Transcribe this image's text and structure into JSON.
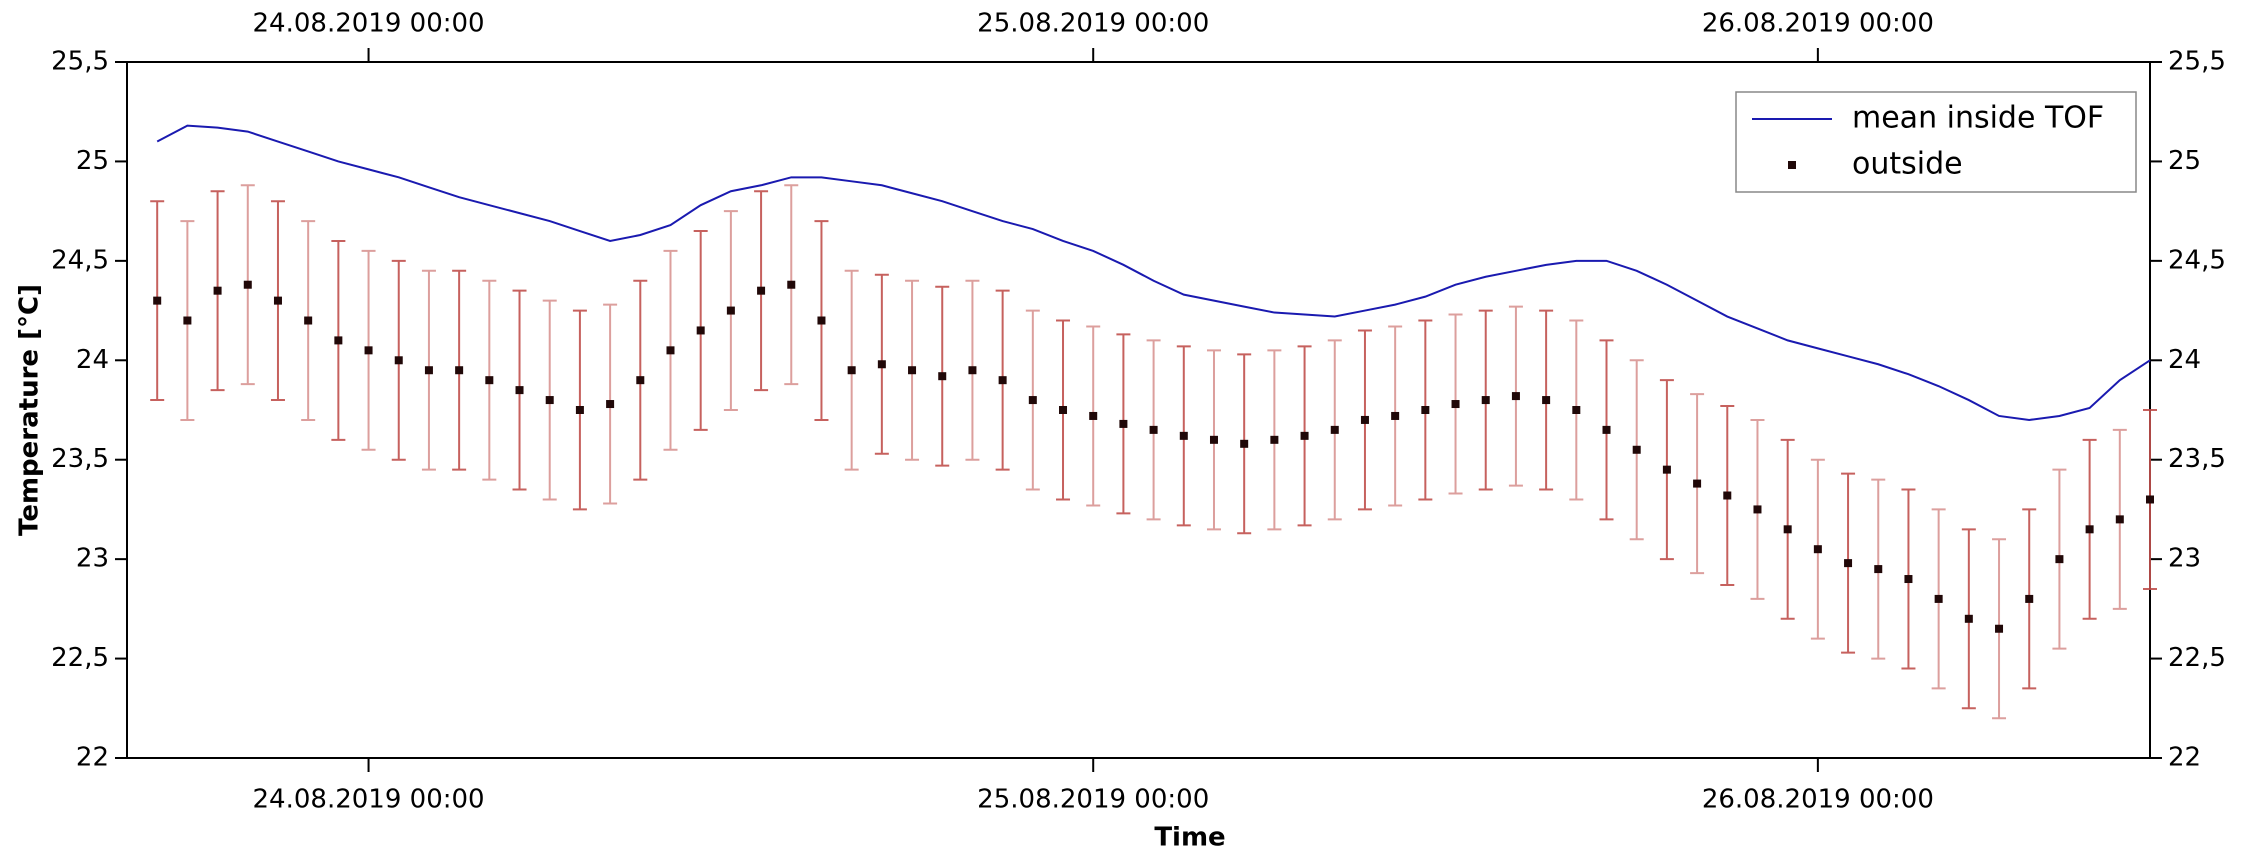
{
  "chart_data": {
    "type": "line",
    "x_label": "Time",
    "y_label": "Temperature [°C]",
    "x": [
      "2019-08-23 17:00",
      "2019-08-23 18:00",
      "2019-08-23 19:00",
      "2019-08-23 20:00",
      "2019-08-23 21:00",
      "2019-08-23 22:00",
      "2019-08-23 23:00",
      "2019-08-24 00:00",
      "2019-08-24 01:00",
      "2019-08-24 02:00",
      "2019-08-24 03:00",
      "2019-08-24 04:00",
      "2019-08-24 05:00",
      "2019-08-24 06:00",
      "2019-08-24 07:00",
      "2019-08-24 08:00",
      "2019-08-24 09:00",
      "2019-08-24 10:00",
      "2019-08-24 11:00",
      "2019-08-24 12:00",
      "2019-08-24 13:00",
      "2019-08-24 14:00",
      "2019-08-24 15:00",
      "2019-08-24 16:00",
      "2019-08-24 17:00",
      "2019-08-24 18:00",
      "2019-08-24 19:00",
      "2019-08-24 20:00",
      "2019-08-24 21:00",
      "2019-08-24 22:00",
      "2019-08-24 23:00",
      "2019-08-25 00:00",
      "2019-08-25 01:00",
      "2019-08-25 02:00",
      "2019-08-25 03:00",
      "2019-08-25 04:00",
      "2019-08-25 05:00",
      "2019-08-25 06:00",
      "2019-08-25 07:00",
      "2019-08-25 08:00",
      "2019-08-25 09:00",
      "2019-08-25 10:00",
      "2019-08-25 11:00",
      "2019-08-25 12:00",
      "2019-08-25 13:00",
      "2019-08-25 14:00",
      "2019-08-25 15:00",
      "2019-08-25 16:00",
      "2019-08-25 17:00",
      "2019-08-25 18:00",
      "2019-08-25 19:00",
      "2019-08-25 20:00",
      "2019-08-25 21:00",
      "2019-08-25 22:00",
      "2019-08-25 23:00",
      "2019-08-26 00:00",
      "2019-08-26 01:00",
      "2019-08-26 02:00",
      "2019-08-26 03:00",
      "2019-08-26 04:00",
      "2019-08-26 05:00",
      "2019-08-26 06:00",
      "2019-08-26 07:00",
      "2019-08-26 08:00",
      "2019-08-26 09:00",
      "2019-08-26 10:00",
      "2019-08-26 11:00"
    ],
    "series": [
      {
        "name": "mean inside TOF",
        "color": "#1a1ab0",
        "values": [
          25.1,
          25.18,
          25.17,
          25.15,
          25.1,
          25.05,
          25.0,
          24.96,
          24.92,
          24.87,
          24.82,
          24.78,
          24.74,
          24.7,
          24.65,
          24.6,
          24.63,
          24.68,
          24.78,
          24.85,
          24.88,
          24.92,
          24.92,
          24.9,
          24.88,
          24.84,
          24.8,
          24.75,
          24.7,
          24.66,
          24.6,
          24.55,
          24.48,
          24.4,
          24.33,
          24.3,
          24.27,
          24.24,
          24.23,
          24.22,
          24.25,
          24.28,
          24.32,
          24.38,
          24.42,
          24.45,
          24.48,
          24.5,
          24.5,
          24.45,
          24.38,
          24.3,
          24.22,
          24.16,
          24.1,
          24.06,
          24.02,
          23.98,
          23.93,
          23.87,
          23.8,
          23.72,
          23.7,
          23.72,
          23.76,
          23.9,
          24.0
        ]
      },
      {
        "name": "outside",
        "color": "#200808",
        "error_color": "#c0504d",
        "marker": "square",
        "values": [
          24.3,
          24.2,
          24.35,
          24.38,
          24.3,
          24.2,
          24.1,
          24.05,
          24.0,
          23.95,
          23.95,
          23.9,
          23.85,
          23.8,
          23.75,
          23.78,
          23.9,
          24.05,
          24.15,
          24.25,
          24.35,
          24.38,
          24.2,
          23.95,
          23.98,
          23.95,
          23.92,
          23.95,
          23.9,
          23.8,
          23.75,
          23.72,
          23.68,
          23.65,
          23.62,
          23.6,
          23.58,
          23.6,
          23.62,
          23.65,
          23.7,
          23.72,
          23.75,
          23.78,
          23.8,
          23.82,
          23.8,
          23.75,
          23.65,
          23.55,
          23.45,
          23.38,
          23.32,
          23.25,
          23.15,
          23.05,
          22.98,
          22.95,
          22.9,
          22.8,
          22.7,
          22.65,
          22.8,
          23.0,
          23.15,
          23.2,
          23.3
        ],
        "errors": [
          0.5,
          0.5,
          0.5,
          0.5,
          0.5,
          0.5,
          0.5,
          0.5,
          0.5,
          0.5,
          0.5,
          0.5,
          0.5,
          0.5,
          0.5,
          0.5,
          0.5,
          0.5,
          0.5,
          0.5,
          0.5,
          0.5,
          0.5,
          0.5,
          0.45,
          0.45,
          0.45,
          0.45,
          0.45,
          0.45,
          0.45,
          0.45,
          0.45,
          0.45,
          0.45,
          0.45,
          0.45,
          0.45,
          0.45,
          0.45,
          0.45,
          0.45,
          0.45,
          0.45,
          0.45,
          0.45,
          0.45,
          0.45,
          0.45,
          0.45,
          0.45,
          0.45,
          0.45,
          0.45,
          0.45,
          0.45,
          0.45,
          0.45,
          0.45,
          0.45,
          0.45,
          0.45,
          0.45,
          0.45,
          0.45,
          0.45,
          0.45
        ]
      }
    ],
    "xlim": [
      "2019-08-23 16:00",
      "2019-08-26 11:00"
    ],
    "xticks": [
      {
        "value": "2019-08-24 00:00",
        "label": "24.08.2019 00:00"
      },
      {
        "value": "2019-08-25 00:00",
        "label": "25.08.2019 00:00"
      },
      {
        "value": "2019-08-26 00:00",
        "label": "26.08.2019 00:00"
      }
    ],
    "ylim": [
      22,
      25.5
    ],
    "yticks": [
      22,
      {
        "value": 22.5,
        "label": "22,5"
      },
      23,
      {
        "value": 23.5,
        "label": "23,5"
      },
      24,
      {
        "value": 24.5,
        "label": "24,5"
      },
      25,
      {
        "value": 25.5,
        "label": "25,5"
      }
    ],
    "legend": "upper right",
    "grid": false
  }
}
